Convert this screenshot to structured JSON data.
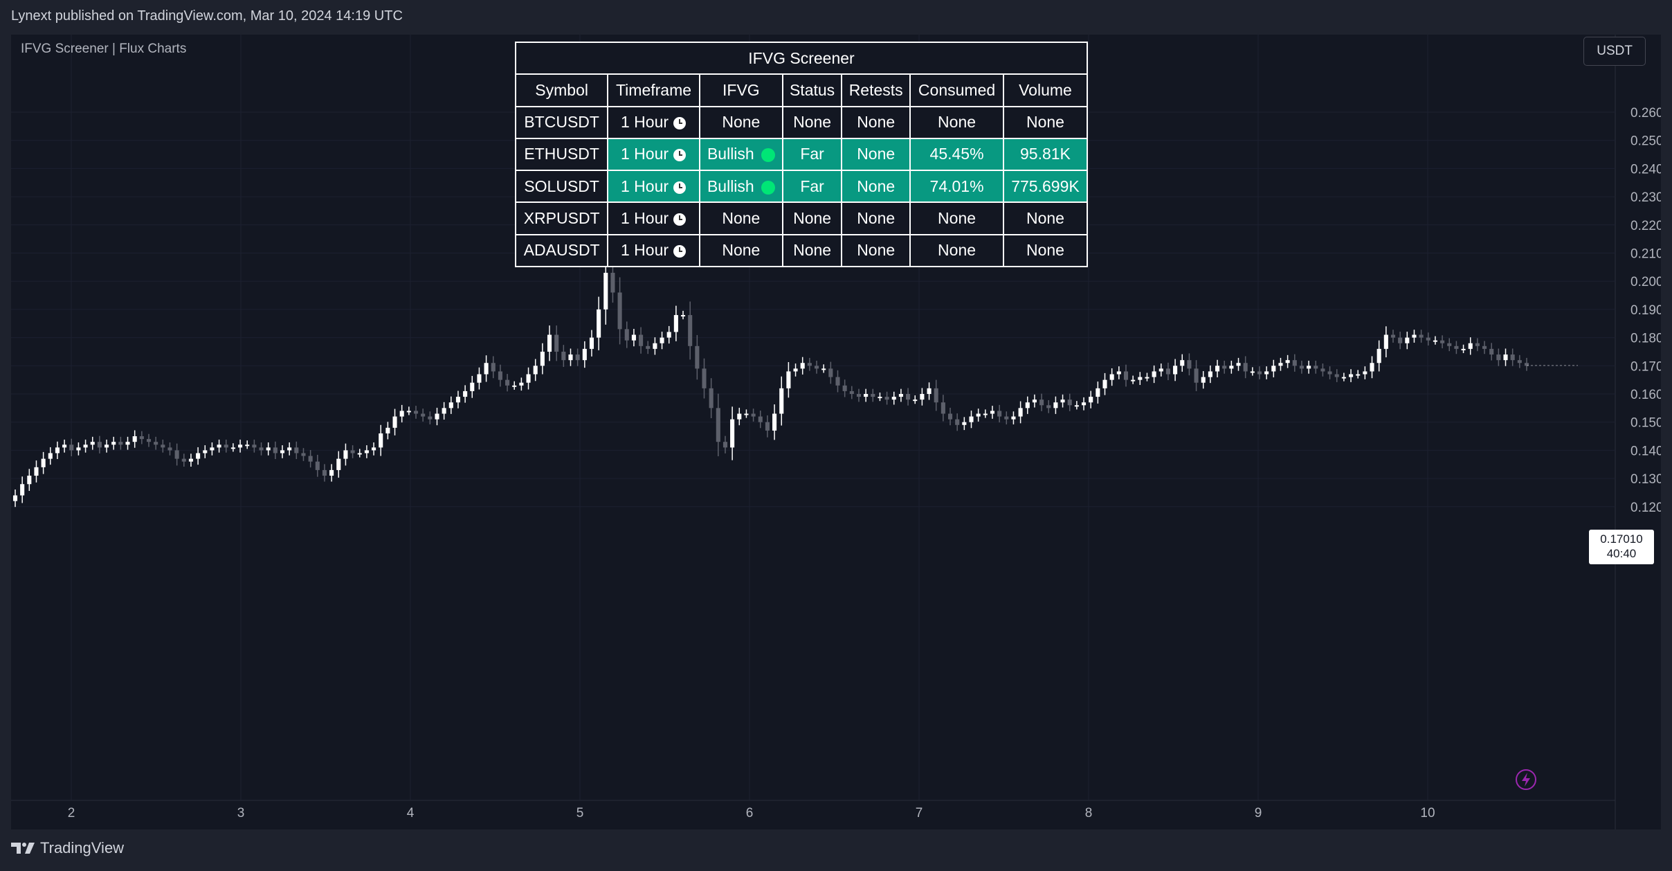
{
  "header": {
    "published_by": "Lynext published on TradingView.com, Mar 10, 2024 14:19 UTC"
  },
  "chart": {
    "indicator_title": "IFVG Screener | Flux Charts",
    "currency": "USDT",
    "y_axis_ticks": [
      "0.26000",
      "0.25000",
      "0.24000",
      "0.23000",
      "0.22000",
      "0.21000",
      "0.20000",
      "0.19000",
      "0.18000",
      "0.17000",
      "0.16000",
      "0.15000",
      "0.14000",
      "0.13000",
      "0.12000"
    ],
    "x_axis_ticks": [
      "2",
      "3",
      "4",
      "5",
      "6",
      "7",
      "8",
      "9",
      "10"
    ],
    "last_price": "0.17010",
    "countdown": "40:40",
    "colors": {
      "candle_up": "#ffffff",
      "candle_down": "#5d606b",
      "background": "#131722",
      "grid": "#1c2030",
      "bullish": "#089981",
      "bullish_dot": "#00e676",
      "flash": "#9c27b0"
    }
  },
  "screener": {
    "title": "IFVG Screener",
    "headers": [
      "Symbol",
      "Timeframe",
      "IFVG",
      "Status",
      "Retests",
      "Consumed",
      "Volume"
    ],
    "rows": [
      {
        "symbol": "BTCUSDT",
        "timeframe": "1 Hour",
        "ifvg": "None",
        "status": "None",
        "retests": "None",
        "consumed": "None",
        "volume": "None",
        "highlight": false
      },
      {
        "symbol": "ETHUSDT",
        "timeframe": "1 Hour",
        "ifvg": "Bullish",
        "status": "Far",
        "retests": "None",
        "consumed": "45.45%",
        "volume": "95.81K",
        "highlight": true
      },
      {
        "symbol": "SOLUSDT",
        "timeframe": "1 Hour",
        "ifvg": "Bullish",
        "status": "Far",
        "retests": "None",
        "consumed": "74.01%",
        "volume": "775.699K",
        "highlight": true
      },
      {
        "symbol": "XRPUSDT",
        "timeframe": "1 Hour",
        "ifvg": "None",
        "status": "None",
        "retests": "None",
        "consumed": "None",
        "volume": "None",
        "highlight": false
      },
      {
        "symbol": "ADAUSDT",
        "timeframe": "1 Hour",
        "ifvg": "None",
        "status": "None",
        "retests": "None",
        "consumed": "None",
        "volume": "None",
        "highlight": false
      }
    ]
  },
  "footer": {
    "brand": "TradingView"
  },
  "chart_data": {
    "type": "candlestick",
    "ylim": [
      0.115,
      0.265
    ],
    "x_ticks": [
      "2",
      "3",
      "4",
      "5",
      "6",
      "7",
      "8",
      "9",
      "10"
    ],
    "close_series": [
      0.124,
      0.128,
      0.131,
      0.134,
      0.137,
      0.139,
      0.141,
      0.142,
      0.14,
      0.141,
      0.142,
      0.143,
      0.141,
      0.142,
      0.143,
      0.142,
      0.143,
      0.145,
      0.144,
      0.143,
      0.142,
      0.141,
      0.14,
      0.137,
      0.136,
      0.137,
      0.139,
      0.14,
      0.141,
      0.142,
      0.141,
      0.141,
      0.142,
      0.142,
      0.141,
      0.14,
      0.141,
      0.139,
      0.14,
      0.141,
      0.139,
      0.138,
      0.136,
      0.133,
      0.131,
      0.133,
      0.137,
      0.14,
      0.139,
      0.139,
      0.14,
      0.141,
      0.146,
      0.148,
      0.152,
      0.154,
      0.154,
      0.153,
      0.152,
      0.151,
      0.153,
      0.155,
      0.157,
      0.159,
      0.161,
      0.164,
      0.167,
      0.171,
      0.168,
      0.165,
      0.163,
      0.163,
      0.164,
      0.167,
      0.17,
      0.175,
      0.181,
      0.175,
      0.172,
      0.174,
      0.172,
      0.176,
      0.18,
      0.19,
      0.203,
      0.196,
      0.183,
      0.179,
      0.181,
      0.177,
      0.176,
      0.178,
      0.18,
      0.182,
      0.188,
      0.188,
      0.177,
      0.169,
      0.162,
      0.155,
      0.143,
      0.141,
      0.151,
      0.153,
      0.153,
      0.152,
      0.15,
      0.147,
      0.153,
      0.162,
      0.168,
      0.169,
      0.171,
      0.17,
      0.169,
      0.169,
      0.166,
      0.163,
      0.161,
      0.16,
      0.159,
      0.16,
      0.159,
      0.159,
      0.158,
      0.159,
      0.16,
      0.158,
      0.158,
      0.16,
      0.162,
      0.157,
      0.153,
      0.151,
      0.149,
      0.15,
      0.152,
      0.153,
      0.153,
      0.154,
      0.152,
      0.151,
      0.152,
      0.155,
      0.157,
      0.158,
      0.156,
      0.155,
      0.157,
      0.158,
      0.156,
      0.156,
      0.157,
      0.159,
      0.162,
      0.165,
      0.167,
      0.168,
      0.165,
      0.165,
      0.166,
      0.166,
      0.168,
      0.169,
      0.167,
      0.17,
      0.172,
      0.169,
      0.164,
      0.166,
      0.168,
      0.17,
      0.169,
      0.17,
      0.171,
      0.168,
      0.168,
      0.167,
      0.168,
      0.17,
      0.171,
      0.172,
      0.17,
      0.169,
      0.17,
      0.169,
      0.168,
      0.167,
      0.166,
      0.166,
      0.167,
      0.167,
      0.168,
      0.171,
      0.176,
      0.181,
      0.18,
      0.178,
      0.18,
      0.181,
      0.18,
      0.179,
      0.179,
      0.178,
      0.177,
      0.176,
      0.176,
      0.178,
      0.177,
      0.176,
      0.174,
      0.172,
      0.174,
      0.172,
      0.171,
      0.17
    ]
  }
}
